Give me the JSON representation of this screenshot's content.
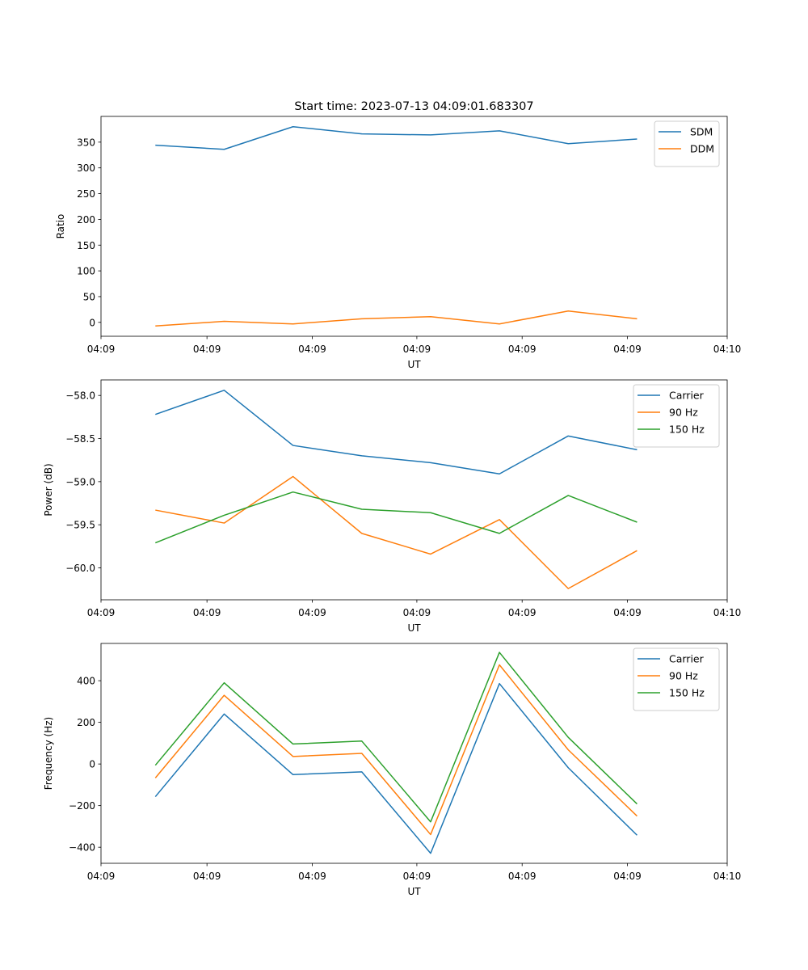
{
  "chart_data": [
    {
      "type": "line",
      "title": "Start time: 2023-07-13 04:09:01.683307",
      "xlabel": "UT",
      "ylabel": "Ratio",
      "x": [
        1,
        2,
        3,
        4,
        5,
        6,
        7,
        8
      ],
      "xlim": [
        0.21,
        9.31
      ],
      "xticks": [
        0.21,
        1.75,
        3.28,
        4.8,
        6.33,
        7.86,
        9.31
      ],
      "xtick_labels": [
        "04:09",
        "04:09",
        "04:09",
        "04:09",
        "04:09",
        "04:09",
        "04:10"
      ],
      "ylim": [
        -27,
        400
      ],
      "yticks": [
        0,
        50,
        100,
        150,
        200,
        250,
        300,
        350
      ],
      "ytick_labels": [
        "0",
        "50",
        "100",
        "150",
        "200",
        "250",
        "300",
        "350"
      ],
      "legend_position": "top-right",
      "series": [
        {
          "name": "SDM",
          "color": "#1f77b4",
          "values": [
            344,
            336,
            380,
            366,
            364,
            372,
            347,
            356
          ]
        },
        {
          "name": "DDM",
          "color": "#ff7f0e",
          "values": [
            -7,
            2,
            -3,
            7,
            11,
            -3,
            22,
            7
          ]
        }
      ]
    },
    {
      "type": "line",
      "title": "",
      "xlabel": "UT",
      "ylabel": "Power (dB)",
      "x": [
        1,
        2,
        3,
        4,
        5,
        6,
        7,
        8
      ],
      "xlim": [
        0.21,
        9.31
      ],
      "xticks": [
        0.21,
        1.75,
        3.28,
        4.8,
        6.33,
        7.86,
        9.31
      ],
      "xtick_labels": [
        "04:09",
        "04:09",
        "04:09",
        "04:09",
        "04:09",
        "04:09",
        "04:10"
      ],
      "ylim": [
        -60.37,
        -57.82
      ],
      "yticks": [
        -58.0,
        -58.5,
        -59.0,
        -59.5,
        -60.0
      ],
      "ytick_labels": [
        "−58.0",
        "−58.5",
        "−59.0",
        "−59.5",
        "−60.0"
      ],
      "legend_position": "top-right",
      "series": [
        {
          "name": "Carrier",
          "color": "#1f77b4",
          "values": [
            -58.22,
            -57.94,
            -58.58,
            -58.7,
            -58.78,
            -58.91,
            -58.47,
            -58.63
          ]
        },
        {
          "name": "90 Hz",
          "color": "#ff7f0e",
          "values": [
            -59.33,
            -59.48,
            -58.94,
            -59.6,
            -59.84,
            -59.44,
            -60.24,
            -59.8
          ]
        },
        {
          "name": "150 Hz",
          "color": "#2ca02c",
          "values": [
            -59.71,
            -59.39,
            -59.12,
            -59.32,
            -59.36,
            -59.6,
            -59.16,
            -59.47
          ]
        }
      ]
    },
    {
      "type": "line",
      "title": "",
      "xlabel": "UT",
      "ylabel": "Frequency (Hz)",
      "x": [
        1,
        2,
        3,
        4,
        5,
        6,
        7,
        8
      ],
      "xlim": [
        0.21,
        9.31
      ],
      "xticks": [
        0.21,
        1.75,
        3.28,
        4.8,
        6.33,
        7.86,
        9.31
      ],
      "xtick_labels": [
        "04:09",
        "04:09",
        "04:09",
        "04:09",
        "04:09",
        "04:09",
        "04:10"
      ],
      "ylim": [
        -477,
        579
      ],
      "yticks": [
        400,
        200,
        0,
        -200,
        -400
      ],
      "ytick_labels": [
        "400",
        "200",
        "0",
        "−200",
        "−400"
      ],
      "legend_position": "top-right",
      "series": [
        {
          "name": "Carrier",
          "color": "#1f77b4",
          "values": [
            -157,
            240,
            -51,
            -38,
            -429,
            386,
            -18,
            -342
          ]
        },
        {
          "name": "90 Hz",
          "color": "#ff7f0e",
          "values": [
            -67,
            330,
            36,
            51,
            -339,
            476,
            68,
            -250
          ]
        },
        {
          "name": "150 Hz",
          "color": "#2ca02c",
          "values": [
            -6,
            390,
            96,
            110,
            -278,
            536,
            128,
            -192
          ]
        }
      ]
    }
  ]
}
